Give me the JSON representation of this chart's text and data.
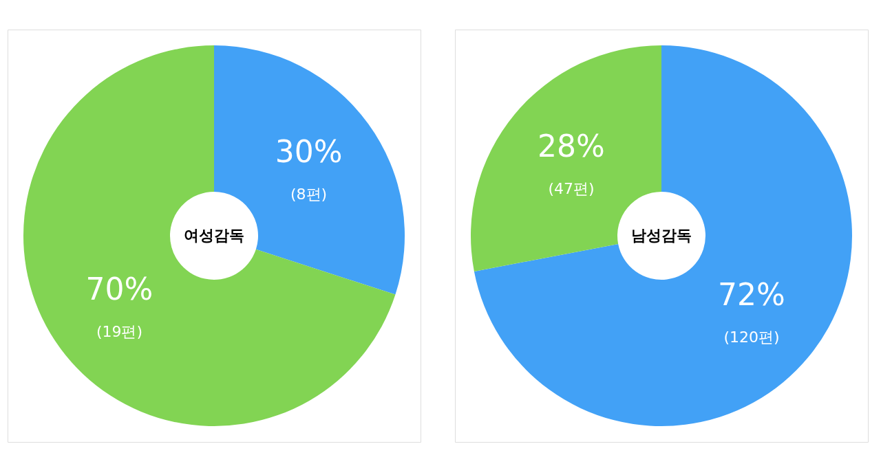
{
  "chart_data": [
    {
      "type": "donut",
      "title": "여성감독",
      "categories": [
        null,
        null
      ],
      "values": [
        30,
        70
      ],
      "colors": [
        "#42a1f6",
        "#82d453"
      ],
      "value_labels": [
        "30%",
        "70%"
      ],
      "annotations": [
        "(8편)",
        "(19편)"
      ],
      "legend": false
    },
    {
      "type": "donut",
      "title": "남성감독",
      "categories": [
        null,
        null
      ],
      "values": [
        72,
        28
      ],
      "colors": [
        "#42a1f6",
        "#82d453"
      ],
      "value_labels": [
        "72%",
        "28%"
      ],
      "annotations": [
        "(120편)",
        "(47편)"
      ],
      "legend": false
    }
  ]
}
